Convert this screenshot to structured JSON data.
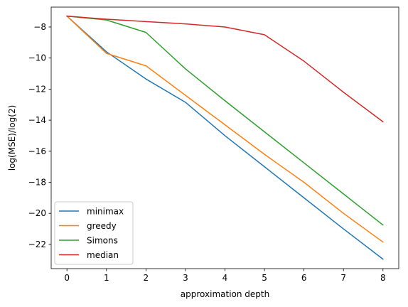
{
  "chart_data": {
    "type": "line",
    "title": "",
    "xlabel": "approximation depth",
    "ylabel": "log(MSE)/log(2)",
    "xlim": [
      -0.4,
      8.4
    ],
    "ylim": [
      -23.56,
      -6.72
    ],
    "xticks": [
      0,
      1,
      2,
      3,
      4,
      5,
      6,
      7,
      8
    ],
    "yticks": [
      -22,
      -20,
      -18,
      -16,
      -14,
      -12,
      -10,
      -8
    ],
    "xtick_labels": [
      "0",
      "1",
      "2",
      "3",
      "4",
      "5",
      "6",
      "7",
      "8"
    ],
    "ytick_labels": [
      "−22",
      "−20",
      "−18",
      "−16",
      "−14",
      "−12",
      "−10",
      "−8"
    ],
    "grid": false,
    "legend_position": "lower-left",
    "x": [
      0,
      1,
      2,
      3,
      4,
      5,
      6,
      7,
      8
    ],
    "series": [
      {
        "name": "minimax",
        "color": "#1f77b4",
        "values": [
          -7.3,
          -9.6,
          -11.35,
          -12.85,
          -15.0,
          -17.0,
          -19.0,
          -21.0,
          -22.95
        ]
      },
      {
        "name": "greedy",
        "color": "#ff7f0e",
        "values": [
          -7.3,
          -9.7,
          -10.5,
          -12.4,
          -14.3,
          -16.2,
          -18.0,
          -20.0,
          -21.85
        ]
      },
      {
        "name": "Simons",
        "color": "#2ca02c",
        "values": [
          -7.3,
          -7.55,
          -8.35,
          -10.7,
          -12.75,
          -14.75,
          -16.75,
          -18.75,
          -20.75
        ]
      },
      {
        "name": "median",
        "color": "#d62728",
        "values": [
          -7.3,
          -7.5,
          -7.65,
          -7.8,
          -8.0,
          -8.5,
          -10.2,
          -12.2,
          -14.1
        ]
      }
    ]
  }
}
